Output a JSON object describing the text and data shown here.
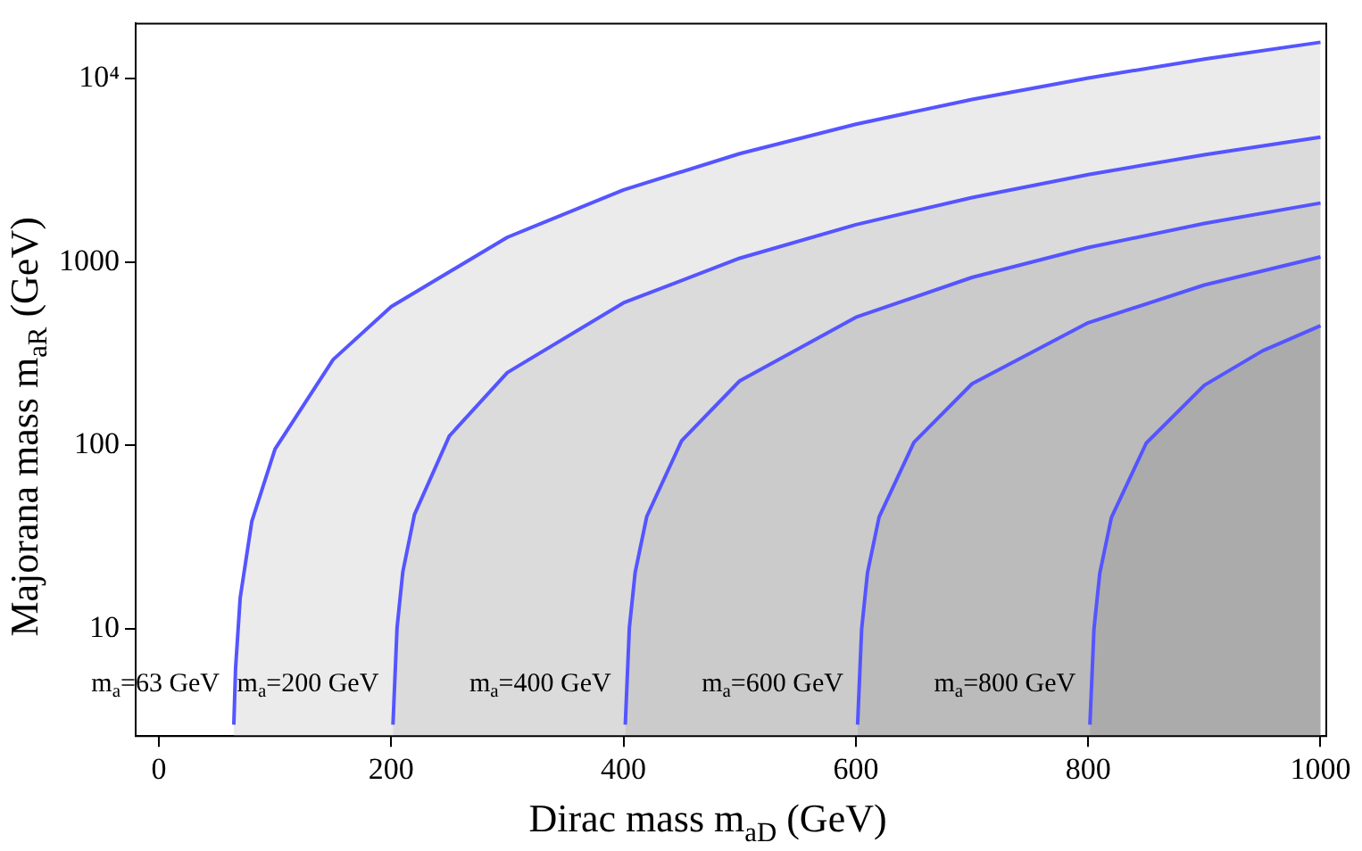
{
  "chart_data": {
    "type": "line",
    "xlabel": "Dirac mass m$_{aD}$ (GeV)",
    "ylabel": "Majorana mass m$_{aR}$ (GeV)",
    "log": "y",
    "xlim": [
      -20,
      1005
    ],
    "ylim": [
      2.6,
      20000
    ],
    "xticks": [
      0,
      200,
      400,
      600,
      800,
      1000
    ],
    "yticks": [
      10,
      100,
      1000,
      {
        "value": 10000,
        "label": "10⁴"
      }
    ],
    "grid": false,
    "legend": false,
    "series": [
      {
        "type": "area",
        "color": "#5555ff",
        "x": [
          801.5,
          805,
          810,
          820,
          850,
          900,
          950,
          1000
        ],
        "values": [
          3,
          10,
          20.1,
          40.5,
          103,
          213,
          328,
          450
        ]
      },
      {
        "type": "area",
        "color": "#5555ff",
        "x": [
          601.5,
          605,
          610,
          620,
          650,
          700,
          800,
          900,
          1000
        ],
        "values": [
          3,
          10,
          20.2,
          40.7,
          104,
          217,
          467,
          750,
          1067
        ]
      },
      {
        "type": "area",
        "color": "#5555ff",
        "x": [
          401.5,
          405,
          410,
          420,
          450,
          500,
          600,
          700,
          800,
          900,
          1000
        ],
        "values": [
          3,
          10.1,
          20.3,
          41,
          106,
          225,
          500,
          825,
          1200,
          1625,
          2100
        ]
      },
      {
        "type": "area",
        "color": "#5555ff",
        "x": [
          201.5,
          205,
          210,
          220,
          250,
          300,
          400,
          500,
          600,
          700,
          800,
          900,
          1000
        ],
        "values": [
          3,
          10.1,
          20.5,
          42,
          112.5,
          250,
          600,
          1050,
          1600,
          2250,
          3000,
          3850,
          4800
        ]
      },
      {
        "type": "area",
        "color": "#5555ff",
        "x": [
          64.5,
          66,
          70,
          80,
          100,
          150,
          200,
          300,
          400,
          500,
          600,
          700,
          800,
          900,
          1000
        ],
        "values": [
          3,
          6.1,
          14.8,
          38.6,
          95.7,
          294,
          572,
          1366,
          2477,
          3905,
          5651,
          7715,
          10096,
          12794,
          15810
        ]
      }
    ],
    "annotations": [
      {
        "text": "m$_{a}$=63 GeV",
        "x": 63,
        "y": 5
      },
      {
        "text": "m$_{a}$=200 GeV",
        "x": 200,
        "y": 5
      },
      {
        "text": "m$_{a}$=400 GeV",
        "x": 400,
        "y": 5
      },
      {
        "text": "m$_{a}$=600 GeV",
        "x": 600,
        "y": 5
      },
      {
        "text": "m$_{a}$=800 GeV",
        "x": 800,
        "y": 5
      }
    ]
  }
}
